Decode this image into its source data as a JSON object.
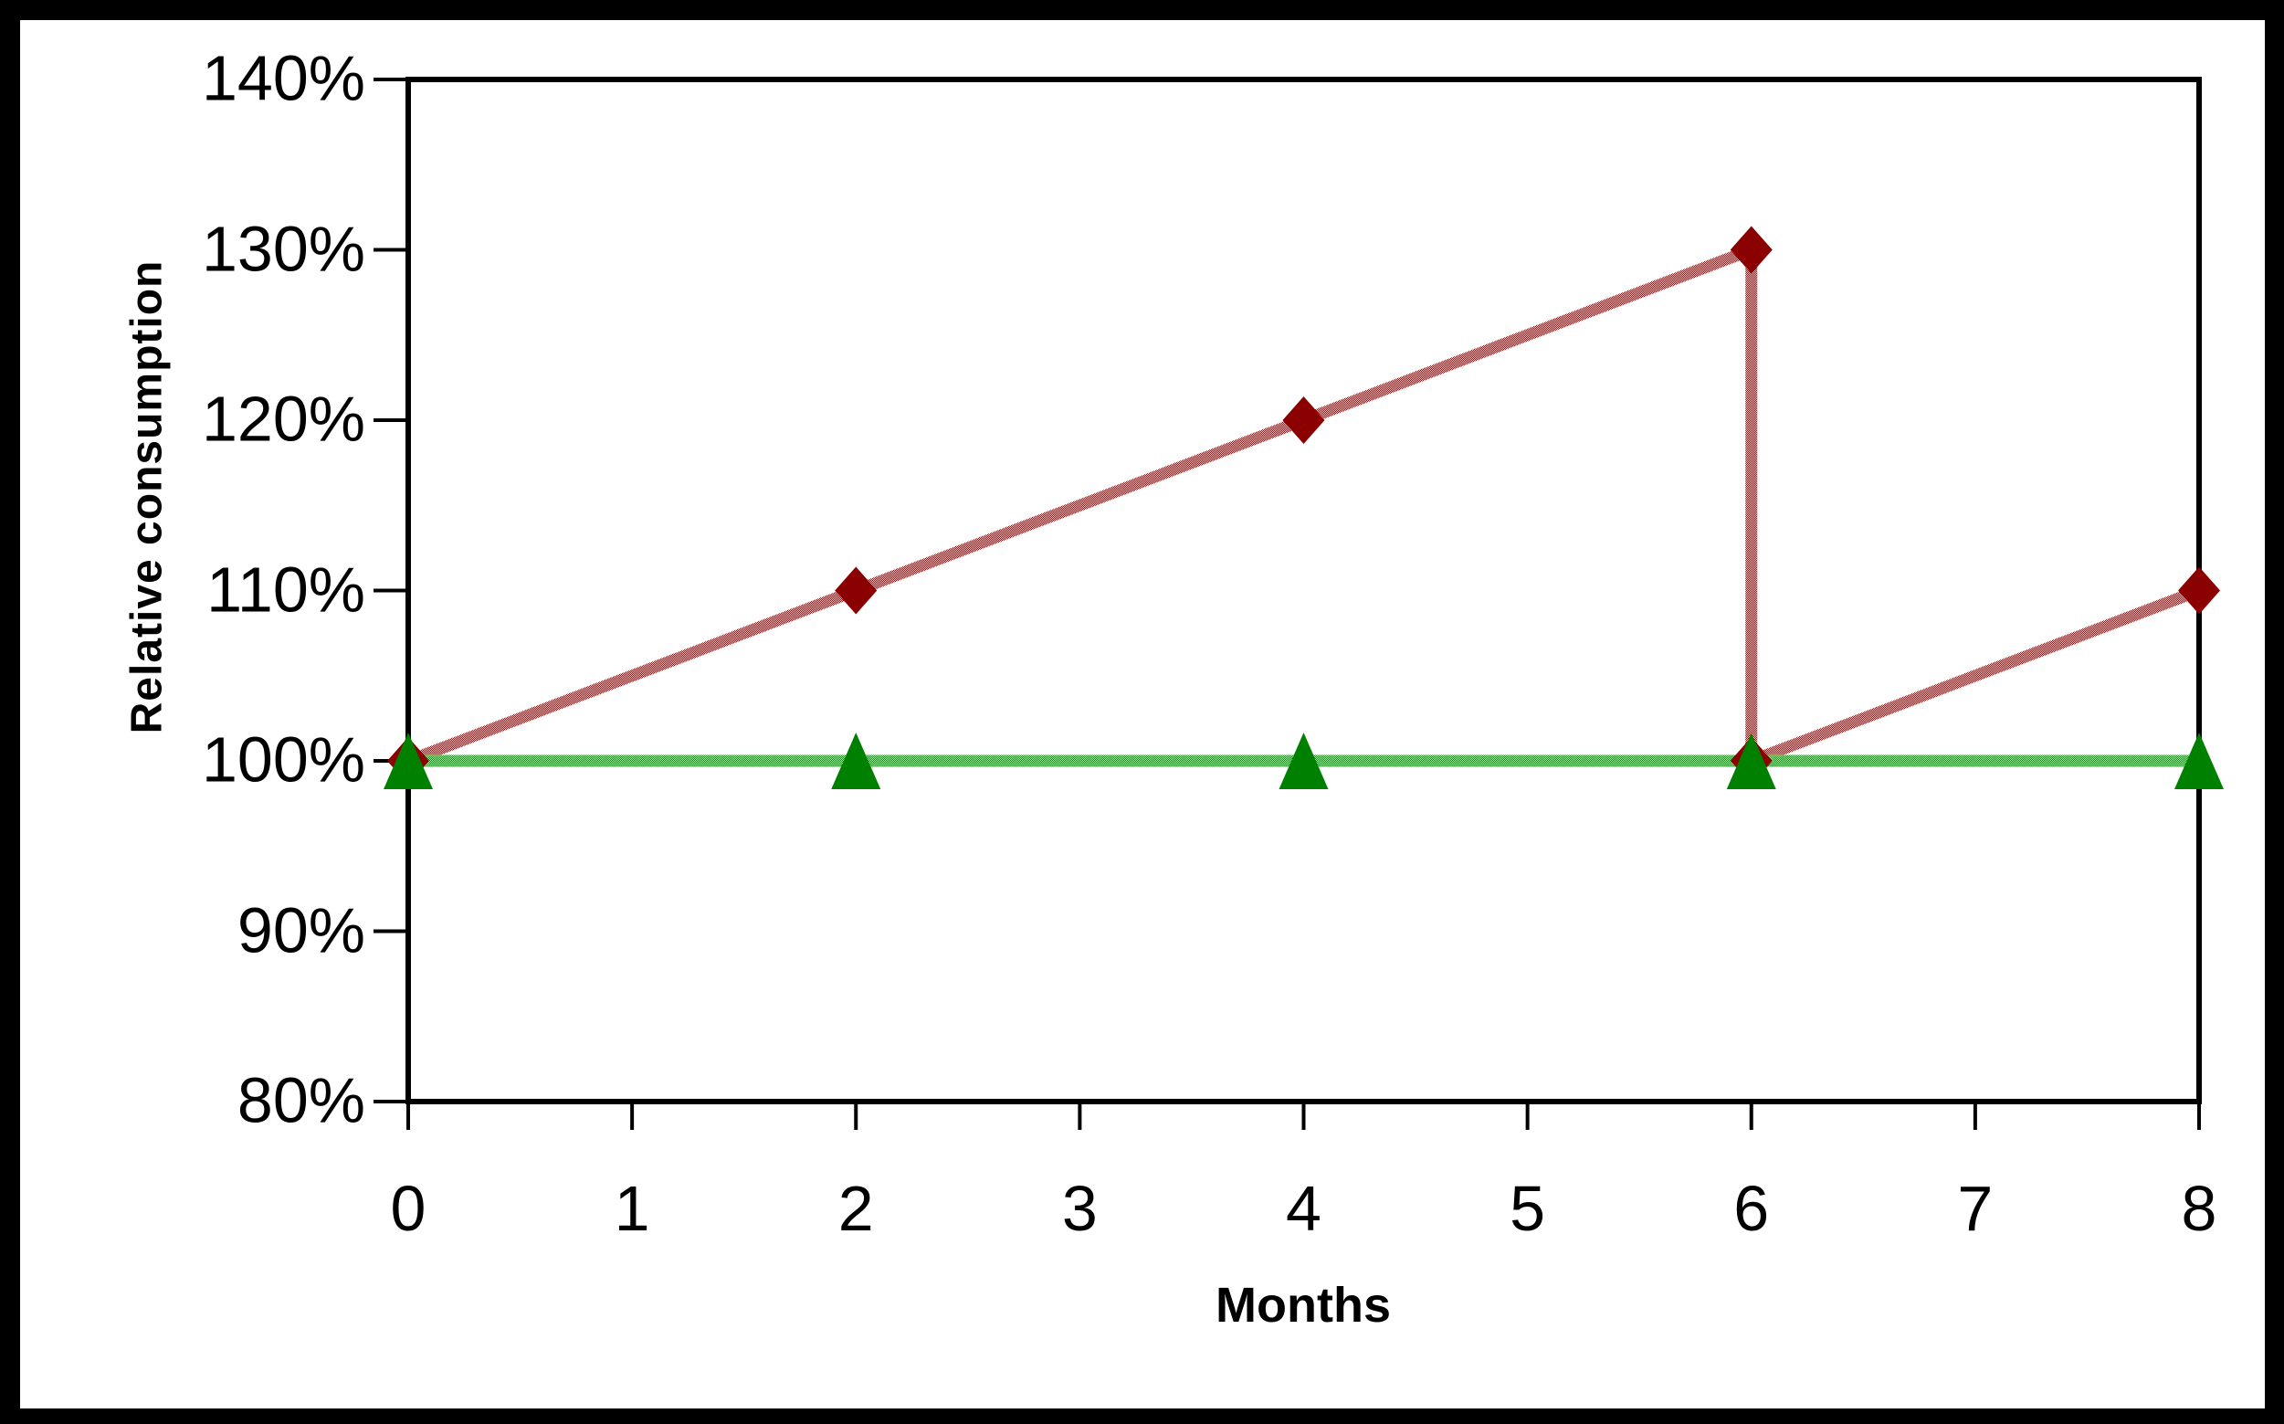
{
  "chart_data": {
    "type": "line",
    "title": "",
    "xlabel": "Months",
    "ylabel": "Relative consumption",
    "xlim": [
      0,
      8
    ],
    "ylim_percent": [
      80,
      140
    ],
    "grid": false,
    "legend": "none",
    "plot_border": true,
    "x_tick_labels": [
      "0",
      "1",
      "2",
      "3",
      "4",
      "5",
      "6",
      "7",
      "8"
    ],
    "x_tick_values": [
      0,
      1,
      2,
      3,
      4,
      5,
      6,
      7,
      8
    ],
    "y_tick_labels": [
      "140%",
      "130%",
      "120%",
      "110%",
      "100%",
      "90%",
      "80%"
    ],
    "y_tick_values_percent": [
      140,
      130,
      120,
      110,
      100,
      90,
      80
    ],
    "series": [
      {
        "id": "diamond-series",
        "marker": "diamond",
        "marker_color": "#8B0000",
        "line_dither_color": "#8B0000",
        "points_percent": [
          [
            0,
            100
          ],
          [
            2,
            110
          ],
          [
            4,
            120
          ],
          [
            6,
            130
          ],
          [
            6,
            100
          ],
          [
            8,
            110
          ]
        ]
      },
      {
        "id": "triangle-series",
        "marker": "triangle-up",
        "marker_color": "#008000",
        "line_dither_color": "#008000",
        "points_percent": [
          [
            0,
            100
          ],
          [
            2,
            100
          ],
          [
            4,
            100
          ],
          [
            6,
            100
          ],
          [
            8,
            100
          ]
        ]
      }
    ],
    "colors": {
      "axis": "#000000",
      "text": "#000000",
      "outer_frame": "#000000",
      "plot_background": "#ffffff"
    }
  }
}
